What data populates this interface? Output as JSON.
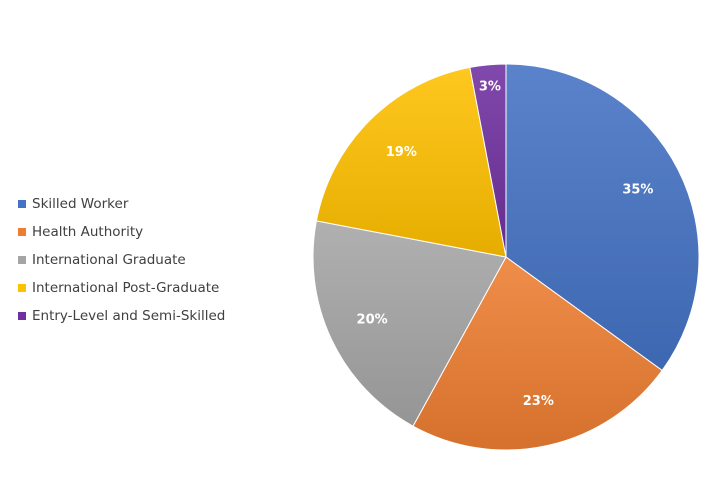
{
  "chart_data": {
    "type": "pie",
    "title": "",
    "legend_position": "left",
    "start_angle_deg": 0,
    "direction": "clockwise",
    "categories": [
      "Skilled Worker",
      "Health Authority",
      "International Graduate",
      "International Post-Graduate",
      "Entry-Level and Semi-Skilled"
    ],
    "values": [
      35,
      23,
      20,
      19,
      3
    ],
    "labels": [
      "35%",
      "23%",
      "20%",
      "19%",
      "3%"
    ],
    "colors": [
      "#4472c4",
      "#ed7d31",
      "#a5a5a5",
      "#ffc000",
      "#7030a0"
    ]
  }
}
